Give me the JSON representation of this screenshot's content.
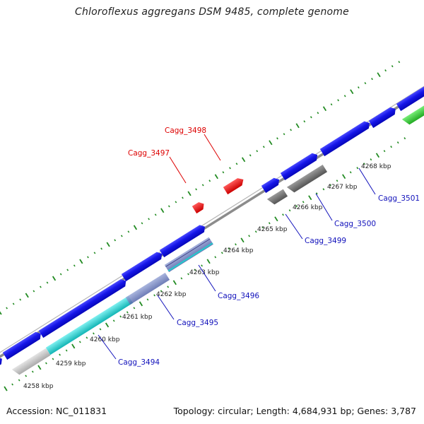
{
  "title": "Chloroflexus aggregans DSM 9485, complete genome",
  "footer": {
    "accession": "Accession: NC_011831",
    "topology": "Topology: circular; Length: 4,684,931 bp; Genes: 3,787"
  },
  "colors": {
    "backbone": "#8a8a8a",
    "blue_gene": "#1010e0",
    "red_gene": "#ee1111",
    "gray_gene": "#6e6e6e",
    "cyan_gene": "#22cccc",
    "green_gene": "#33cc33",
    "light_gray_gene": "#c8c8c8",
    "tick_green": "#228b22",
    "label_red": "#dd0000",
    "label_blue": "#1111bb"
  },
  "kbp_labels": [
    "4258 kbp",
    "4259 kbp",
    "4260 kbp",
    "4261 kbp",
    "4262 kbp",
    "4263 kbp",
    "4264 kbp",
    "4265 kbp",
    "4266 kbp",
    "4267 kbp",
    "4268 kbp"
  ],
  "gene_labels": {
    "cagg_3494": "Cagg_3494",
    "cagg_3495": "Cagg_3495",
    "cagg_3496": "Cagg_3496",
    "cagg_3497": "Cagg_3497",
    "cagg_3498": "Cagg_3498",
    "cagg_3499": "Cagg_3499",
    "cagg_3500": "Cagg_3500",
    "cagg_3501": "Cagg_3501"
  }
}
